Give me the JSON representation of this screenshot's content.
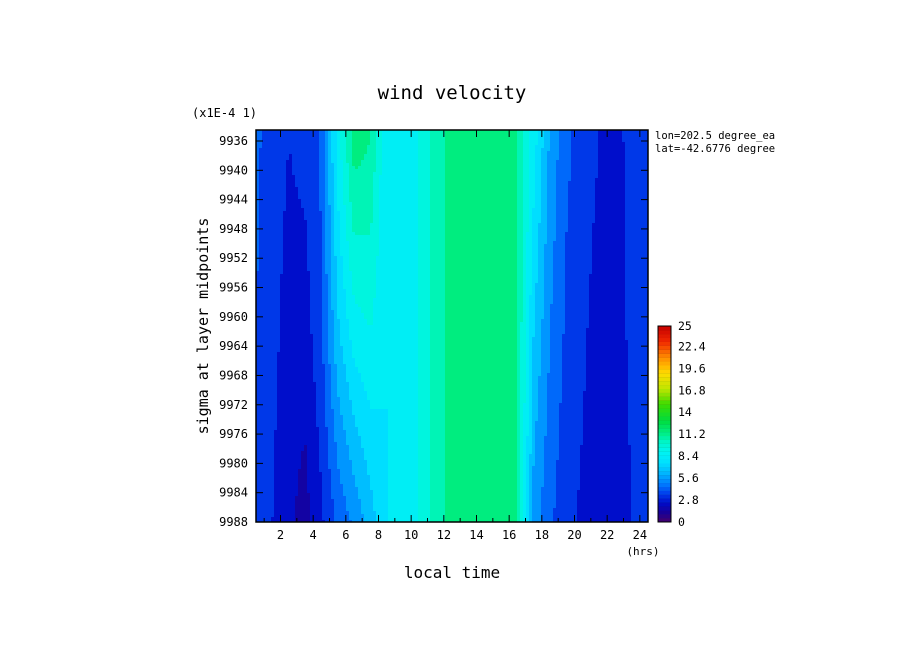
{
  "chart_data": {
    "type": "heatmap",
    "title": "wind velocity",
    "xlabel": "local time",
    "x_unit": "(hrs)",
    "ylabel": "sigma at layer midpoints",
    "y_scale_note": "(x1E-4 1)",
    "annotations": [
      "lon=202.5 degree_ea",
      "lat=-42.6776 degree"
    ],
    "x": [
      0.5,
      1.5,
      2.5,
      3.5,
      4.5,
      5.5,
      6.5,
      7.5,
      8.5,
      9.5,
      10.5,
      11.5,
      12.5,
      13.5,
      14.5,
      15.5,
      16.5,
      17.5,
      18.5,
      19.5,
      20.5,
      21.5,
      22.5,
      23.5
    ],
    "xlim": [
      0.5,
      24.5
    ],
    "xticks": [
      "2",
      "4",
      "6",
      "8",
      "10",
      "12",
      "14",
      "16",
      "18",
      "20",
      "22",
      "24"
    ],
    "y": [
      9936,
      9962,
      9988
    ],
    "ylim": [
      9934.5,
      9988
    ],
    "yticks": [
      "9936",
      "9940",
      "9944",
      "9948",
      "9952",
      "9956",
      "9960",
      "9964",
      "9968",
      "9972",
      "9976",
      "9980",
      "9984",
      "9988"
    ],
    "z": [
      [
        4.2,
        3.5,
        3.0,
        3.3,
        4.2,
        8.5,
        11.5,
        11.0,
        8.0,
        8.5,
        9.0,
        10.5,
        11.5,
        11.5,
        11.5,
        11.5,
        11.0,
        8.5,
        5.8,
        4.2,
        3.6,
        3.0,
        2.8,
        3.2
      ],
      [
        4.0,
        3.3,
        2.6,
        2.5,
        3.8,
        6.8,
        8.5,
        9.0,
        8.0,
        8.5,
        9.0,
        10.5,
        11.5,
        11.5,
        11.5,
        11.5,
        11.0,
        7.0,
        5.0,
        3.8,
        3.2,
        2.5,
        2.6,
        3.2
      ],
      [
        3.8,
        3.0,
        2.2,
        1.6,
        2.8,
        4.2,
        5.2,
        6.5,
        8.0,
        8.5,
        9.0,
        10.5,
        11.5,
        11.5,
        11.5,
        11.5,
        11.0,
        5.5,
        4.2,
        3.3,
        2.8,
        2.2,
        2.4,
        3.0
      ]
    ],
    "colorbar": {
      "min": 0,
      "max": 25,
      "labels": [
        "25",
        "22.4",
        "19.6",
        "16.8",
        "14",
        "11.2",
        "8.4",
        "5.6",
        "2.8",
        "0"
      ]
    },
    "grid": false
  }
}
